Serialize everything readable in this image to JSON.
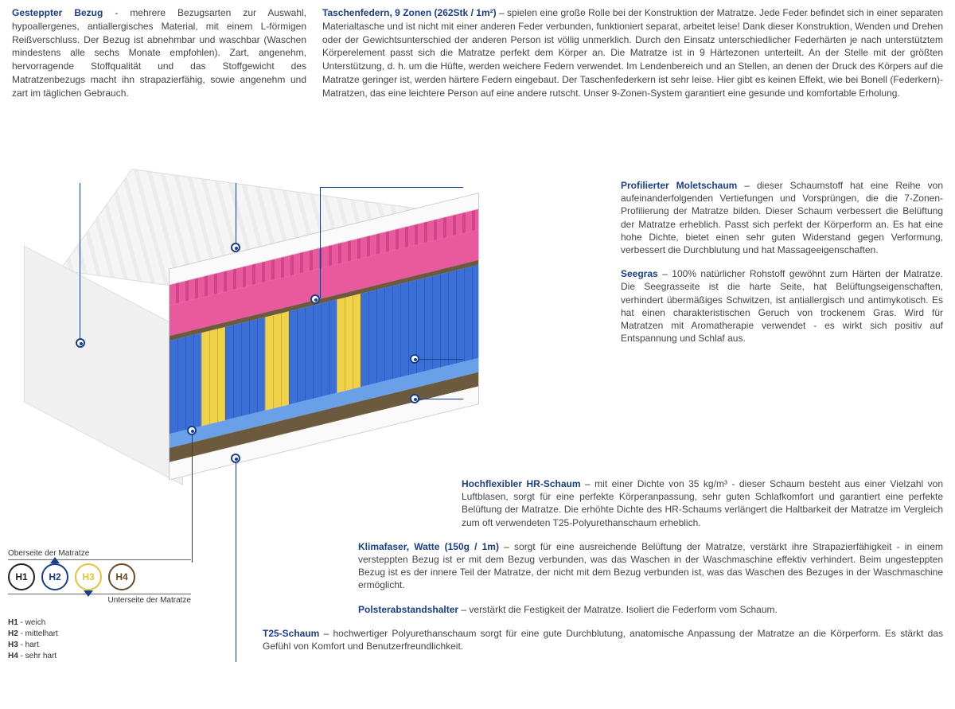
{
  "accent": "#1a3e8c",
  "text_color": "#444444",
  "top": {
    "left": {
      "title": "Gesteppter Bezug",
      "sep": " - ",
      "body": "mehrere Bezugsarten zur Auswahl, hypoallergenes, antiallergisches Material, mit einem L-förmigen Reißverschluss. Der Bezug ist abnehmbar und waschbar (Waschen mindestens alle sechs Monate empfohlen). Zart, angenehm, hervorragende Stoffqualität und das Stoffgewicht des Matratzenbezugs macht ihn strapazierfähig, sowie angenehm und zart im täglichen Gebrauch."
    },
    "right": {
      "title": "Taschenfedern, 9 Zonen (262Stk / 1m²)",
      "sep": " – ",
      "body": "spielen eine große Rolle bei der Konstruktion der Matratze. Jede Feder befindet sich in einer separaten Materialtasche und ist nicht mit einer anderen Feder verbunden, funktioniert separat, arbeitet leise! Dank dieser Konstruktion, Wenden und Drehen oder der Gewichtsunterschied der anderen Person ist völlig unmerklich. Durch den Einsatz unterschiedlicher Federhärten je nach unterstütztem Körperelement passt sich die Matratze perfekt dem Körper an. Die Matratze ist in 9 Härtezonen unterteilt. An der Stelle mit der größten Unterstützung, d. h. um die Hüfte, werden weichere Federn verwendet. Im Lendenbereich und an Stellen, an denen der Druck des Körpers auf die Matratze geringer ist, werden härtere Federn eingebaut. Der Taschenfederkern ist sehr leise. Hier gibt es keinen Effekt, wie bei Bonell (Federkern)- Matratzen, das eine leichtere Person auf eine andere rutscht. Unser 9-Zonen-System garantiert eine gesunde und komfortable Erholung."
    }
  },
  "right_callouts": [
    {
      "title": "Profilierter Moletschaum",
      "sep": " – ",
      "body": "dieser Schaumstoff hat eine Reihe von aufeinanderfolgenden Vertiefungen und Vorsprüngen, die die 7-Zonen-Profilierung der Matratze bilden. Dieser Schaum verbessert die Belüftung der Matratze erheblich. Passt sich perfekt der Körperform an. Es hat eine hohe Dichte, bietet einen sehr guten Widerstand gegen Verformung, verbessert die Durchblutung und hat Massageeigenschaften."
    },
    {
      "title": "Seegras",
      "sep": " – ",
      "body": "100% natürlicher Rohstoff gewöhnt zum Härten der Matratze. Die Seegrasseite ist die harte Seite, hat Belüftungseigenschaften, verhindert übermäßiges Schwitzen, ist antiallergisch und antimykotisch. Es hat einen charakteristischen Geruch von trockenem Gras. Wird für Matratzen mit Aromatherapie verwendet - es wirkt sich positiv auf Entspannung und Schlaf aus."
    }
  ],
  "lower_callouts": [
    {
      "title": "Hochflexibler HR-Schaum",
      "sep": " – ",
      "body": "mit einer Dichte von 35 kg/m³ - dieser Schaum besteht aus einer Vielzahl von Luftblasen, sorgt für eine perfekte Körperanpassung, sehr guten Schlafkomfort und garantiert eine perfekte Belüftung der Matratze. Die erhöhte Dichte des HR-Schaums verlängert die Haltbarkeit der Matratze im Vergleich zum oft verwendeten T25-Polyurethanschaum erheblich."
    },
    {
      "title": "Klimafaser, Watte (150g / 1m)",
      "sep": " – ",
      "body": "sorgt für eine ausreichende Belüftung der Matratze, verstärkt ihre Strapazierfähigkeit - in einem versteppten Bezug ist er mit dem Bezug verbunden, was das Waschen in der Waschmaschine effektiv verhindert. Beim ungesteppten Bezug ist es der innere Teil der Matratze, der nicht mit dem Bezug verbunden ist, was das Waschen des Bezuges in der Waschmaschine ermöglicht."
    },
    {
      "title": "Polsterabstandshalter",
      "sep": " – ",
      "body": "verstärkt die Festigkeit der Matratze. Isoliert die Federform vom Schaum."
    },
    {
      "title": "T25-Schaum",
      "sep": " – ",
      "body": "hochwertiger Polyurethanschaum sorgt für eine gute Durchblutung, anatomische Anpassung der Matratze an die Körperform. Es stärkt das Gefühl von Komfort und Benutzerfreundlichkeit."
    }
  ],
  "legend": {
    "top_label": "Oberseite der Matratze",
    "bottom_label": "Unterseite der Matratze",
    "items": [
      {
        "code": "H1",
        "color": "#222222"
      },
      {
        "code": "H2",
        "color": "#1a3e8c"
      },
      {
        "code": "H3",
        "color": "#e2c33a"
      },
      {
        "code": "H4",
        "color": "#6b4a2a"
      }
    ],
    "defs": [
      {
        "code": "H1",
        "label": "weich"
      },
      {
        "code": "H2",
        "label": "mittelhart"
      },
      {
        "code": "H3",
        "label": "hart"
      },
      {
        "code": "H4",
        "label": "sehr hart"
      }
    ]
  },
  "layers": {
    "cover": "#f5f5f5",
    "pink_profile": "#e85a9d",
    "seagrass": "#6b5a3e",
    "spring_blue": "#3b6fd6",
    "spring_yellow": "#f0d24a",
    "hr_foam": "#6aa0e8",
    "coco": "#6b5a3e"
  },
  "zones": 9,
  "springs_per_m2": 262,
  "hr_density_kg_m3": 35,
  "klimafaser_g_per_m": 150
}
